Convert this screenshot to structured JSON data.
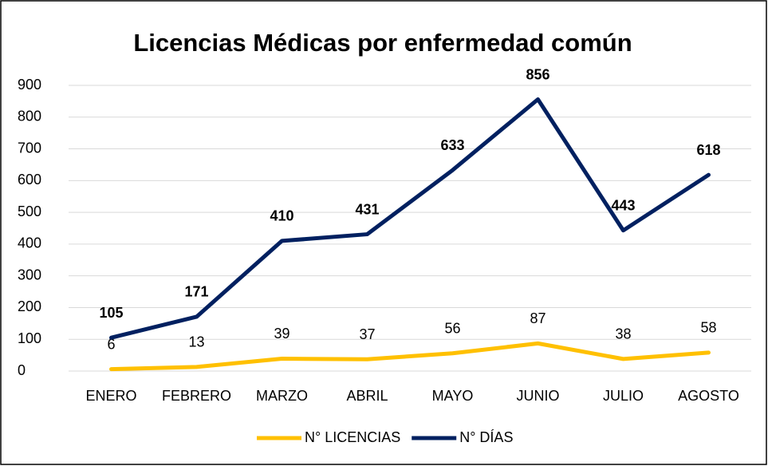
{
  "chart_data": {
    "type": "line",
    "title": "Licencias Médicas por enfermedad común",
    "categories": [
      "ENERO",
      "FEBRERO",
      "MARZO",
      "ABRIL",
      "MAYO",
      "JUNIO",
      "JULIO",
      "AGOSTO"
    ],
    "series": [
      {
        "name": "N° LICENCIAS",
        "color": "#FFC000",
        "values": [
          6,
          13,
          39,
          37,
          56,
          87,
          38,
          58
        ]
      },
      {
        "name": "N° DÍAS",
        "color": "#002060",
        "values": [
          105,
          171,
          410,
          431,
          633,
          856,
          443,
          618
        ]
      }
    ],
    "ylim": [
      0,
      900
    ],
    "yticks": [
      0,
      100,
      200,
      300,
      400,
      500,
      600,
      700,
      800,
      900
    ],
    "grid": true,
    "legend": "bottom"
  }
}
